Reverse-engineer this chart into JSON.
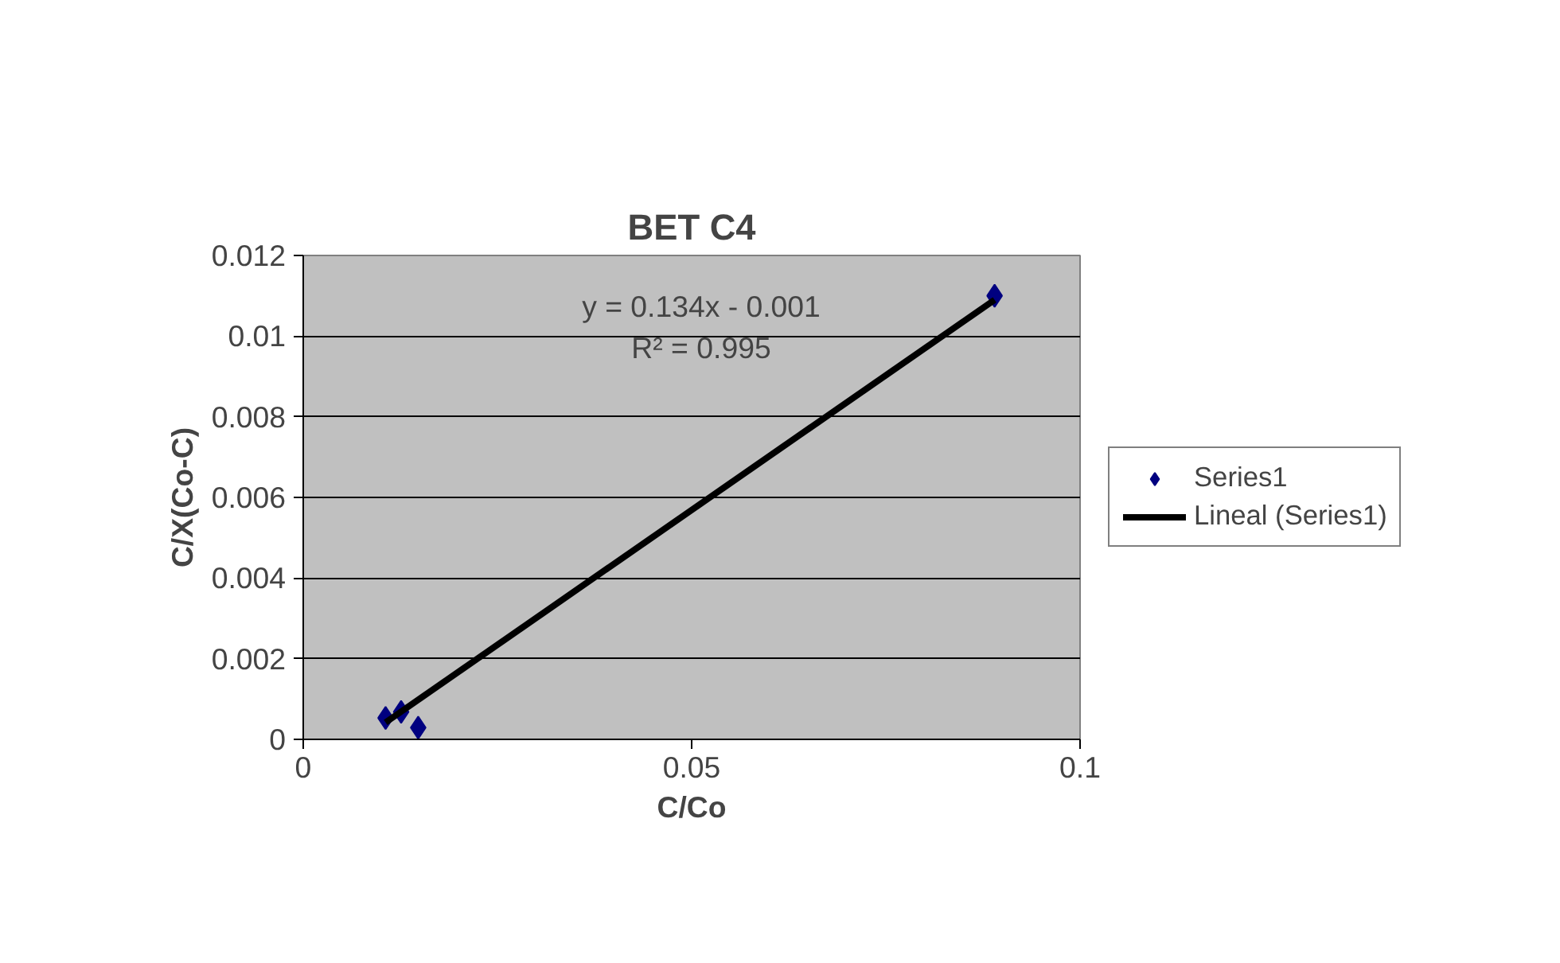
{
  "chart_data": {
    "type": "scatter",
    "title": "BET C4",
    "xlabel": "C/Co",
    "ylabel": "C/X(Co-C)",
    "xlim": [
      0,
      0.1
    ],
    "xticks": [
      0,
      0.05,
      0.1
    ],
    "ylim": [
      0,
      0.012
    ],
    "yticks": [
      0,
      0.002,
      0.004,
      0.006,
      0.008,
      0.01,
      0.012
    ],
    "grid": "y",
    "legend": "right",
    "marker": "diamond",
    "series": [
      {
        "name": "Series1",
        "color": "#000080",
        "x": [
          0.0106,
          0.0126,
          0.0148,
          0.089
        ],
        "values": [
          0.00053,
          0.00068,
          0.00029,
          0.011
        ]
      },
      {
        "name": "Lineal (Series1)",
        "type": "line",
        "color": "#000000",
        "line_style": "solid",
        "marker": "none",
        "x": [
          0.0106,
          0.089
        ],
        "values": [
          0.00042,
          0.0109
        ]
      }
    ],
    "annotations": [
      "y = 0.134x - 0.001",
      "R² = 0.995"
    ]
  }
}
